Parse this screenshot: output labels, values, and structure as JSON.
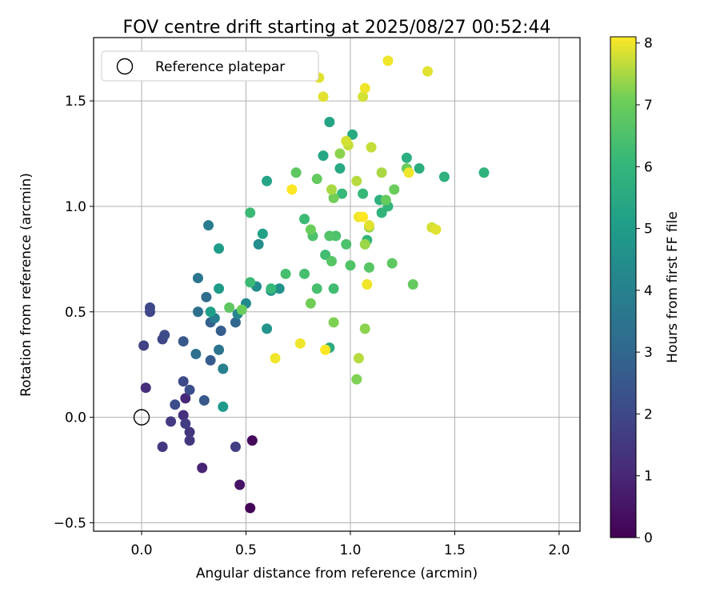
{
  "chart_data": {
    "type": "scatter",
    "title": "FOV centre drift starting at 2025/08/27 00:52:44",
    "xlabel": "Angular distance from reference (arcmin)",
    "ylabel": "Rotation from reference (arcmin)",
    "xlim": [
      -0.23,
      2.1
    ],
    "ylim": [
      -0.54,
      1.8
    ],
    "xticks": [
      "0.0",
      "0.5",
      "1.0",
      "1.5",
      "2.0"
    ],
    "yticks": [
      "−0.5",
      "0.0",
      "0.5",
      "1.0",
      "1.5"
    ],
    "grid": true,
    "legend": {
      "placement": "upper-left",
      "label": "Reference platepar"
    },
    "reference_point": {
      "x": 0.0,
      "y": 0.0
    },
    "colorbar": {
      "label": "Hours from first FF file",
      "range": [
        0,
        8.1
      ],
      "ticks": [
        "0",
        "1",
        "2",
        "3",
        "4",
        "5",
        "6",
        "7",
        "8"
      ],
      "colormap": "viridis"
    },
    "points": [
      {
        "x": 0.52,
        "y": -0.43,
        "c": 0.1
      },
      {
        "x": 0.53,
        "y": -0.11,
        "c": 0.2
      },
      {
        "x": 0.47,
        "y": -0.32,
        "c": 0.5
      },
      {
        "x": 0.29,
        "y": -0.24,
        "c": 0.9
      },
      {
        "x": 0.21,
        "y": 0.09,
        "c": 1.0
      },
      {
        "x": 0.02,
        "y": 0.14,
        "c": 1.2
      },
      {
        "x": 0.2,
        "y": 0.01,
        "c": 1.3
      },
      {
        "x": 0.23,
        "y": -0.07,
        "c": 1.4
      },
      {
        "x": 0.23,
        "y": -0.11,
        "c": 1.5
      },
      {
        "x": 0.1,
        "y": -0.14,
        "c": 1.5
      },
      {
        "x": 0.14,
        "y": -0.02,
        "c": 1.6
      },
      {
        "x": 0.21,
        "y": -0.03,
        "c": 1.7
      },
      {
        "x": 0.45,
        "y": -0.14,
        "c": 1.7
      },
      {
        "x": 0.01,
        "y": 0.34,
        "c": 1.8
      },
      {
        "x": 0.1,
        "y": 0.37,
        "c": 1.9
      },
      {
        "x": 0.04,
        "y": 0.52,
        "c": 2.0
      },
      {
        "x": 0.04,
        "y": 0.5,
        "c": 2.0
      },
      {
        "x": 0.11,
        "y": 0.39,
        "c": 2.1
      },
      {
        "x": 0.2,
        "y": 0.17,
        "c": 2.1
      },
      {
        "x": 0.23,
        "y": 0.13,
        "c": 2.2
      },
      {
        "x": 0.16,
        "y": 0.06,
        "c": 2.2
      },
      {
        "x": 0.3,
        "y": 0.08,
        "c": 2.5
      },
      {
        "x": 0.2,
        "y": 0.36,
        "c": 2.5
      },
      {
        "x": 0.33,
        "y": 0.27,
        "c": 2.6
      },
      {
        "x": 0.38,
        "y": 0.41,
        "c": 2.7
      },
      {
        "x": 0.33,
        "y": 0.45,
        "c": 2.8
      },
      {
        "x": 0.45,
        "y": 0.45,
        "c": 3.0
      },
      {
        "x": 0.31,
        "y": 0.57,
        "c": 3.2
      },
      {
        "x": 0.27,
        "y": 0.5,
        "c": 3.3
      },
      {
        "x": 0.26,
        "y": 0.3,
        "c": 3.4
      },
      {
        "x": 0.37,
        "y": 0.32,
        "c": 3.5
      },
      {
        "x": 0.27,
        "y": 0.66,
        "c": 3.6
      },
      {
        "x": 0.32,
        "y": 0.91,
        "c": 3.8
      },
      {
        "x": 0.35,
        "y": 0.47,
        "c": 3.9
      },
      {
        "x": 0.39,
        "y": 0.23,
        "c": 4.0
      },
      {
        "x": 0.46,
        "y": 0.49,
        "c": 4.2
      },
      {
        "x": 0.5,
        "y": 0.54,
        "c": 4.3
      },
      {
        "x": 0.55,
        "y": 0.62,
        "c": 4.4
      },
      {
        "x": 0.56,
        "y": 0.82,
        "c": 4.5
      },
      {
        "x": 0.62,
        "y": 0.6,
        "c": 4.6
      },
      {
        "x": 0.66,
        "y": 0.61,
        "c": 4.6
      },
      {
        "x": 0.6,
        "y": 0.42,
        "c": 4.7
      },
      {
        "x": 0.39,
        "y": 0.05,
        "c": 4.9
      },
      {
        "x": 0.37,
        "y": 0.8,
        "c": 5.0
      },
      {
        "x": 0.37,
        "y": 0.61,
        "c": 5.0
      },
      {
        "x": 0.33,
        "y": 0.5,
        "c": 5.1
      },
      {
        "x": 0.58,
        "y": 0.87,
        "c": 5.2
      },
      {
        "x": 0.6,
        "y": 1.12,
        "c": 5.3
      },
      {
        "x": 0.9,
        "y": 1.4,
        "c": 5.3
      },
      {
        "x": 0.87,
        "y": 1.24,
        "c": 5.4
      },
      {
        "x": 0.95,
        "y": 1.18,
        "c": 5.5
      },
      {
        "x": 1.01,
        "y": 1.34,
        "c": 5.5
      },
      {
        "x": 0.9,
        "y": 0.33,
        "c": 5.6
      },
      {
        "x": 1.27,
        "y": 1.23,
        "c": 5.7
      },
      {
        "x": 1.33,
        "y": 1.18,
        "c": 5.7
      },
      {
        "x": 1.45,
        "y": 1.14,
        "c": 5.8
      },
      {
        "x": 1.64,
        "y": 1.16,
        "c": 5.9
      },
      {
        "x": 1.14,
        "y": 1.03,
        "c": 5.8
      },
      {
        "x": 1.15,
        "y": 0.97,
        "c": 5.9
      },
      {
        "x": 1.18,
        "y": 1.0,
        "c": 6.0
      },
      {
        "x": 1.08,
        "y": 0.84,
        "c": 6.0
      },
      {
        "x": 1.06,
        "y": 1.06,
        "c": 6.1
      },
      {
        "x": 0.96,
        "y": 1.06,
        "c": 6.1
      },
      {
        "x": 0.62,
        "y": 0.61,
        "c": 6.1
      },
      {
        "x": 0.52,
        "y": 0.97,
        "c": 6.2
      },
      {
        "x": 0.52,
        "y": 0.64,
        "c": 6.2
      },
      {
        "x": 0.78,
        "y": 0.94,
        "c": 6.2
      },
      {
        "x": 0.88,
        "y": 0.77,
        "c": 6.3
      },
      {
        "x": 0.92,
        "y": 0.61,
        "c": 6.3
      },
      {
        "x": 0.78,
        "y": 0.68,
        "c": 6.4
      },
      {
        "x": 0.69,
        "y": 0.68,
        "c": 6.4
      },
      {
        "x": 0.84,
        "y": 0.61,
        "c": 6.4
      },
      {
        "x": 0.82,
        "y": 0.86,
        "c": 6.5
      },
      {
        "x": 0.93,
        "y": 0.86,
        "c": 6.5
      },
      {
        "x": 0.98,
        "y": 0.82,
        "c": 6.5
      },
      {
        "x": 1.0,
        "y": 0.72,
        "c": 6.6
      },
      {
        "x": 0.9,
        "y": 0.86,
        "c": 6.6
      },
      {
        "x": 0.91,
        "y": 0.74,
        "c": 6.7
      },
      {
        "x": 1.09,
        "y": 0.71,
        "c": 6.7
      },
      {
        "x": 1.2,
        "y": 0.73,
        "c": 6.8
      },
      {
        "x": 1.3,
        "y": 0.63,
        "c": 6.9
      },
      {
        "x": 1.17,
        "y": 1.03,
        "c": 6.9
      },
      {
        "x": 1.21,
        "y": 1.08,
        "c": 7.0
      },
      {
        "x": 1.27,
        "y": 1.18,
        "c": 7.0
      },
      {
        "x": 0.74,
        "y": 1.16,
        "c": 6.8
      },
      {
        "x": 0.84,
        "y": 1.13,
        "c": 6.9
      },
      {
        "x": 0.81,
        "y": 0.89,
        "c": 7.0
      },
      {
        "x": 0.42,
        "y": 0.52,
        "c": 6.8
      },
      {
        "x": 0.48,
        "y": 0.51,
        "c": 7.0
      },
      {
        "x": 0.81,
        "y": 0.54,
        "c": 7.1
      },
      {
        "x": 0.92,
        "y": 1.04,
        "c": 7.1
      },
      {
        "x": 0.92,
        "y": 0.45,
        "c": 7.2
      },
      {
        "x": 1.03,
        "y": 0.18,
        "c": 7.2
      },
      {
        "x": 1.07,
        "y": 0.42,
        "c": 7.3
      },
      {
        "x": 0.95,
        "y": 1.25,
        "c": 7.3
      },
      {
        "x": 1.07,
        "y": 0.82,
        "c": 7.4
      },
      {
        "x": 1.09,
        "y": 0.9,
        "c": 7.4
      },
      {
        "x": 1.15,
        "y": 1.16,
        "c": 7.5
      },
      {
        "x": 0.91,
        "y": 1.08,
        "c": 7.5
      },
      {
        "x": 1.04,
        "y": 0.28,
        "c": 7.6
      },
      {
        "x": 1.03,
        "y": 1.12,
        "c": 7.6
      },
      {
        "x": 0.99,
        "y": 1.29,
        "c": 7.7
      },
      {
        "x": 1.1,
        "y": 1.28,
        "c": 7.7
      },
      {
        "x": 0.98,
        "y": 1.31,
        "c": 7.8
      },
      {
        "x": 1.06,
        "y": 1.52,
        "c": 7.8
      },
      {
        "x": 0.87,
        "y": 1.52,
        "c": 7.9
      },
      {
        "x": 0.85,
        "y": 1.61,
        "c": 7.9
      },
      {
        "x": 1.07,
        "y": 1.56,
        "c": 8.0
      },
      {
        "x": 1.18,
        "y": 1.69,
        "c": 8.0
      },
      {
        "x": 1.37,
        "y": 1.64,
        "c": 7.9
      },
      {
        "x": 1.39,
        "y": 0.9,
        "c": 7.8
      },
      {
        "x": 1.41,
        "y": 0.89,
        "c": 7.9
      },
      {
        "x": 1.28,
        "y": 1.16,
        "c": 8.0
      },
      {
        "x": 1.04,
        "y": 0.95,
        "c": 8.0
      },
      {
        "x": 1.06,
        "y": 0.95,
        "c": 8.1
      },
      {
        "x": 1.09,
        "y": 0.91,
        "c": 7.9
      },
      {
        "x": 1.08,
        "y": 0.63,
        "c": 8.0
      },
      {
        "x": 0.72,
        "y": 1.08,
        "c": 8.1
      },
      {
        "x": 0.76,
        "y": 0.35,
        "c": 8.0
      },
      {
        "x": 0.88,
        "y": 0.32,
        "c": 8.1
      },
      {
        "x": 0.64,
        "y": 0.28,
        "c": 8.0
      }
    ]
  }
}
